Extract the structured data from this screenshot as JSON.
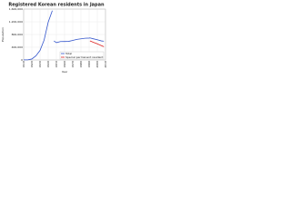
{
  "chart_data": {
    "type": "line",
    "title": "Registered Korean residents in Japan",
    "x_label": "Year",
    "y_label": "Population",
    "x": [
      1910,
      1915,
      1920,
      1925,
      1930,
      1935,
      1940,
      1945,
      1946,
      1947,
      1950,
      1955,
      1960,
      1965,
      1970,
      1975,
      1980,
      1985,
      1990,
      1991,
      1995,
      2000,
      2005,
      2008
    ],
    "series": [
      {
        "name": "Total",
        "color": "#3355cc",
        "values": [
          2500,
          4000,
          30000,
          130000,
          300000,
          625000,
          1190000,
          1550000,
          null,
          598000,
          545000,
          578000,
          581000,
          584000,
          614000,
          647000,
          665000,
          683000,
          688000,
          693000,
          666000,
          636000,
          598000,
          589000
        ]
      },
      {
        "name": "Special permanent resident",
        "color": "#dd2222",
        "values": [
          null,
          null,
          null,
          null,
          null,
          null,
          null,
          null,
          null,
          null,
          null,
          null,
          null,
          null,
          null,
          null,
          null,
          null,
          null,
          600000,
          557000,
          507000,
          451000,
          417000
        ]
      }
    ],
    "xlim": [
      1910,
      2010
    ],
    "xticks": [
      1910,
      1920,
      1930,
      1940,
      1950,
      1960,
      1970,
      1980,
      1990,
      2000,
      2010
    ],
    "ylim": [
      0,
      1600000
    ],
    "yticks": [
      0,
      {
        "value": 400000,
        "label": "400,000"
      },
      {
        "value": 800000,
        "label": "800,000"
      },
      {
        "value": 1200000,
        "label": "1,200,000"
      },
      {
        "value": 1600000,
        "label": "1,600,000"
      }
    ],
    "grid": true,
    "legend": "bottom-right"
  }
}
